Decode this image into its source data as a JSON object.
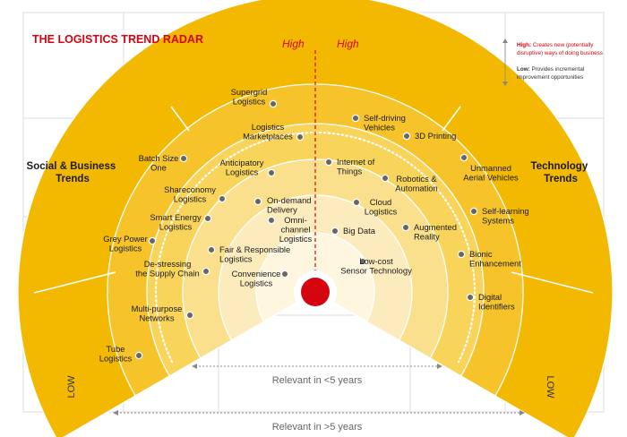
{
  "title": "THE LOGISTICS TREND RADAR",
  "high_left": "High",
  "high_right": "High",
  "low_left": "LOW",
  "low_right": "LOW",
  "legend": {
    "high_label": "High:",
    "high_text_1": " Creates new (potentially",
    "high_text_2": "disruptive) ways of doing business",
    "low_label": "Low:",
    "low_text_1": " Provides incremental",
    "low_text_2": "improvement opportunities"
  },
  "side_left": [
    "Social & Business",
    "Trends"
  ],
  "side_right": [
    "Technology",
    "Trends"
  ],
  "relevant_inner": "Relevant in <5 years",
  "relevant_outer": "Relevant in >5 years",
  "colors": {
    "red": "#d40511",
    "ring_outer": "#f3b800",
    "ring_2": "#f6c42a",
    "ring_3": "#f8d45a",
    "ring_4": "#fae08c",
    "ring_5": "#fcecbd",
    "ring_inner": "#fef6df"
  },
  "trends": [
    {
      "id": "supergrid-logistics",
      "lines": [
        "Supergrid",
        "Logistics"
      ]
    },
    {
      "id": "logistics-marketplaces",
      "lines": [
        "Logistics",
        "Marketplaces"
      ]
    },
    {
      "id": "batch-size-one",
      "lines": [
        "Batch Size",
        "One"
      ]
    },
    {
      "id": "anticipatory-logistics",
      "lines": [
        "Anticipatory",
        "Logistics"
      ]
    },
    {
      "id": "shareconomy-logistics",
      "lines": [
        "Shareconomy",
        "Logistics"
      ]
    },
    {
      "id": "on-demand-delivery",
      "lines": [
        "On-demand",
        "Delivery"
      ]
    },
    {
      "id": "smart-energy-logistics",
      "lines": [
        "Smart Energy",
        "Logistics"
      ]
    },
    {
      "id": "omni-channel-logistics",
      "lines": [
        "Omni-",
        "channel",
        "Logistics"
      ]
    },
    {
      "id": "grey-power-logistics",
      "lines": [
        "Grey Power",
        "Logistics"
      ]
    },
    {
      "id": "fair-responsible-logistics",
      "lines": [
        "Fair & Responsible",
        "Logistics"
      ]
    },
    {
      "id": "de-stressing-supply-chain",
      "lines": [
        "De-stressing",
        "the Supply Chain"
      ]
    },
    {
      "id": "convenience-logistics",
      "lines": [
        "Convenience",
        "Logistics"
      ]
    },
    {
      "id": "multi-purpose-networks",
      "lines": [
        "Multi-purpose",
        "Networks"
      ]
    },
    {
      "id": "tube-logistics",
      "lines": [
        "Tube",
        "Logistics"
      ]
    },
    {
      "id": "self-driving-vehicles",
      "lines": [
        "Self-driving",
        "Vehicles"
      ]
    },
    {
      "id": "3d-printing",
      "lines": [
        "3D Printing"
      ]
    },
    {
      "id": "internet-of-things",
      "lines": [
        "Internet of",
        "Things"
      ]
    },
    {
      "id": "robotics-automation",
      "lines": [
        "Robotics &",
        "Automation"
      ]
    },
    {
      "id": "unmanned-aerial-vehicles",
      "lines": [
        "Unmanned",
        "Aerial Vehicles"
      ]
    },
    {
      "id": "cloud-logistics",
      "lines": [
        "Cloud",
        "Logistics"
      ]
    },
    {
      "id": "self-learning-systems",
      "lines": [
        "Self-learning",
        "Systems"
      ]
    },
    {
      "id": "big-data",
      "lines": [
        "Big Data"
      ]
    },
    {
      "id": "augmented-reality",
      "lines": [
        "Augmented",
        "Reality"
      ]
    },
    {
      "id": "bionic-enhancement",
      "lines": [
        "Bionic",
        "Enhancement"
      ]
    },
    {
      "id": "low-cost-sensor-technology",
      "lines": [
        "Low-cost",
        "Sensor Technology"
      ]
    },
    {
      "id": "digital-identifiers",
      "lines": [
        "Digital",
        "Identifiers"
      ]
    }
  ]
}
